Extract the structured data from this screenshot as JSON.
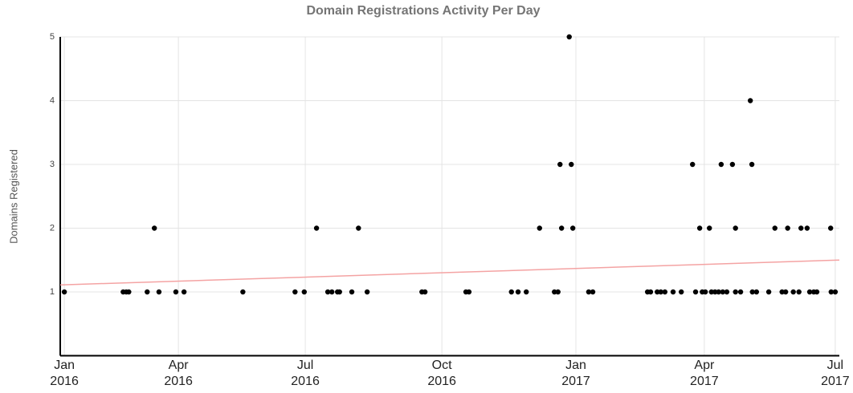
{
  "chart_data": {
    "type": "scatter",
    "title": "Domain Registrations Activity Per Day",
    "ylabel": "Domains Registered",
    "xlim": [
      2015.992,
      2017.515
    ],
    "ylim": [
      0,
      5
    ],
    "xticks": [
      {
        "value": 2016.0,
        "label": "Jan\n2016"
      },
      {
        "value": 2016.223,
        "label": "Apr\n2016"
      },
      {
        "value": 2016.471,
        "label": "Jul\n2016"
      },
      {
        "value": 2016.738,
        "label": "Oct\n2016"
      },
      {
        "value": 2017.0,
        "label": "Jan\n2017"
      },
      {
        "value": 2017.251,
        "label": "Apr\n2017"
      },
      {
        "value": 2017.507,
        "label": "Jul\n2017"
      }
    ],
    "yticks": [
      1,
      2,
      3,
      4,
      5
    ],
    "grid": true,
    "series": [
      {
        "color": "#000000",
        "x": [
          2016.0,
          2016.115,
          2016.121,
          2016.126,
          2016.162,
          2016.185,
          2016.218,
          2016.234,
          2016.349,
          2016.451,
          2016.469,
          2016.515,
          2016.523,
          2016.534,
          2016.538,
          2016.562,
          2016.592,
          2016.699,
          2016.705,
          2016.785,
          2016.791,
          2016.874,
          2016.887,
          2016.903,
          2016.958,
          2016.965,
          2017.025,
          2017.033,
          2017.14,
          2017.146,
          2017.159,
          2017.166,
          2017.174,
          2017.19,
          2017.206,
          2017.234,
          2017.247,
          2017.253,
          2017.265,
          2017.272,
          2017.279,
          2017.287,
          2017.295,
          2017.312,
          2017.322,
          2017.345,
          2017.353,
          2017.377,
          2017.403,
          2017.41,
          2017.425,
          2017.436,
          2017.457,
          2017.465,
          2017.471,
          2017.499,
          2017.507,
          2016.176,
          2016.493,
          2016.575,
          2016.929,
          2016.972,
          2016.994,
          2017.242,
          2017.261,
          2017.312,
          2017.389,
          2017.414,
          2017.44,
          2017.452,
          2017.498,
          2016.969,
          2016.991,
          2017.228,
          2017.284,
          2017.306,
          2017.344,
          2017.341,
          2016.987
        ],
        "values": [
          1,
          1,
          1,
          1,
          1,
          1,
          1,
          1,
          1,
          1,
          1,
          1,
          1,
          1,
          1,
          1,
          1,
          1,
          1,
          1,
          1,
          1,
          1,
          1,
          1,
          1,
          1,
          1,
          1,
          1,
          1,
          1,
          1,
          1,
          1,
          1,
          1,
          1,
          1,
          1,
          1,
          1,
          1,
          1,
          1,
          1,
          1,
          1,
          1,
          1,
          1,
          1,
          1,
          1,
          1,
          1,
          1,
          2,
          2,
          2,
          2,
          2,
          2,
          2,
          2,
          2,
          2,
          2,
          2,
          2,
          2,
          3,
          3,
          3,
          3,
          3,
          3,
          4,
          5
        ]
      }
    ],
    "trendline": {
      "color": "#f4a3a3",
      "x": [
        2015.992,
        2017.515
      ],
      "y": [
        1.11,
        1.5
      ]
    }
  }
}
